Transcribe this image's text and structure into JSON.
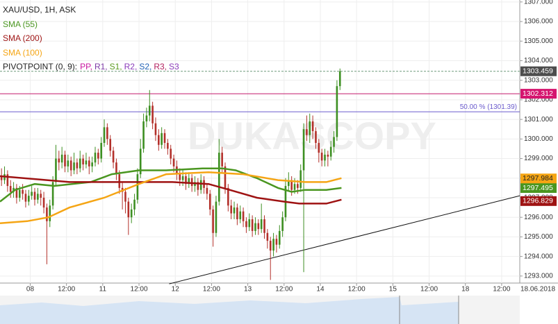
{
  "chart_data": {
    "type": "candlestick",
    "title": "XAU/USD, 1H, ASK",
    "watermark": "DUKASCOPY",
    "up_color": "#3d8f22",
    "down_color": "#b3302a",
    "xlim": [
      0,
      172
    ],
    "xticks": [
      {
        "value": 10,
        "label": "08"
      },
      {
        "value": 22,
        "label": "12:00"
      },
      {
        "value": 34,
        "label": "11"
      },
      {
        "value": 46,
        "label": "12:00"
      },
      {
        "value": 58,
        "label": "12"
      },
      {
        "value": 70,
        "label": "12:00"
      },
      {
        "value": 82,
        "label": "13"
      },
      {
        "value": 94,
        "label": "12:00"
      },
      {
        "value": 106,
        "label": "14"
      },
      {
        "value": 118,
        "label": "12:00"
      },
      {
        "value": 130,
        "label": "15"
      },
      {
        "value": 142,
        "label": "12:00"
      },
      {
        "value": 154,
        "label": "18"
      },
      {
        "value": 166,
        "label": "12:00"
      }
    ],
    "x_end_label": "18.06.2018",
    "ylim": [
      1292.64,
      1307.1
    ],
    "yticks": [
      {
        "value": 1293,
        "label": "1293.000"
      },
      {
        "value": 1294,
        "label": "1294.000"
      },
      {
        "value": 1295,
        "label": "1295.000"
      },
      {
        "value": 1296,
        "label": "1296.000"
      },
      {
        "value": 1297,
        "label": "1297.000"
      },
      {
        "value": 1298,
        "label": "1298.000"
      },
      {
        "value": 1299,
        "label": "1299.000"
      },
      {
        "value": 1300,
        "label": "1300.000"
      },
      {
        "value": 1301,
        "label": "1301.000"
      },
      {
        "value": 1302,
        "label": "1302.000"
      },
      {
        "value": 1303,
        "label": "1303.000"
      },
      {
        "value": 1304,
        "label": "1304.000"
      },
      {
        "value": 1305,
        "label": "1305.000"
      },
      {
        "value": 1306,
        "label": "1306.000"
      },
      {
        "value": 1307,
        "label": "1307.000"
      }
    ],
    "grid": true,
    "open": [
      1298.1,
      1297.9,
      1298.2,
      1297.6,
      1297.3,
      1297.5,
      1297.0,
      1297.4,
      1297.2,
      1296.8,
      1297.1,
      1297.3,
      1296.9,
      1297.2,
      1297.0,
      1296.5,
      1295.8,
      1296.6,
      1297.8,
      1299.0,
      1298.8,
      1299.2,
      1298.6,
      1298.9,
      1298.4,
      1298.8,
      1298.5,
      1299.0,
      1298.7,
      1298.9,
      1298.6,
      1298.8,
      1299.3,
      1299.0,
      1299.8,
      1300.6,
      1300.0,
      1299.4,
      1298.8,
      1298.2,
      1297.5,
      1297.3,
      1296.8,
      1296.0,
      1296.4,
      1296.9,
      1298.2,
      1299.5,
      1300.9,
      1301.2,
      1301.7,
      1300.8,
      1300.2,
      1299.7,
      1300.3,
      1299.8,
      1299.5,
      1299.0,
      1298.6,
      1298.2,
      1297.9,
      1298.1,
      1297.7,
      1298.0,
      1297.6,
      1297.8,
      1297.4,
      1297.9,
      1297.5,
      1297.2,
      1296.4,
      1295.2,
      1296.8,
      1299.3,
      1298.6,
      1297.5,
      1296.6,
      1296.2,
      1296.5,
      1295.9,
      1296.3,
      1295.8,
      1295.5,
      1295.9,
      1295.3,
      1295.7,
      1295.4,
      1295.9,
      1295.2,
      1294.8,
      1294.3,
      1294.9,
      1294.6,
      1295.3,
      1296.0,
      1297.6,
      1297.9,
      1297.4,
      1297.7,
      1297.5,
      1298.4,
      1300.5,
      1300.2,
      1300.9,
      1300.4,
      1299.8,
      1299.3,
      1298.9,
      1299.2,
      1299.1,
      1299.6,
      1300.1,
      1302.7
    ],
    "high": [
      1298.5,
      1298.6,
      1298.4,
      1297.9,
      1297.8,
      1297.7,
      1297.6,
      1297.7,
      1297.4,
      1297.4,
      1297.6,
      1297.5,
      1297.5,
      1297.4,
      1297.3,
      1296.7,
      1296.9,
      1298.1,
      1299.7,
      1299.4,
      1299.6,
      1299.4,
      1299.2,
      1299.1,
      1299.3,
      1299.0,
      1299.4,
      1299.2,
      1299.3,
      1299.1,
      1299.1,
      1299.6,
      1299.5,
      1300.1,
      1301.0,
      1300.8,
      1300.2,
      1299.6,
      1299.0,
      1298.4,
      1297.8,
      1297.5,
      1297.0,
      1296.7,
      1297.2,
      1298.5,
      1300.0,
      1301.3,
      1301.6,
      1302.5,
      1301.9,
      1301.1,
      1300.5,
      1300.6,
      1300.5,
      1300.0,
      1299.7,
      1299.2,
      1298.9,
      1298.5,
      1298.4,
      1298.3,
      1298.3,
      1298.2,
      1298.1,
      1298.0,
      1298.2,
      1298.1,
      1297.7,
      1297.4,
      1296.6,
      1297.1,
      1300.0,
      1299.6,
      1298.8,
      1297.7,
      1296.9,
      1296.8,
      1296.7,
      1296.6,
      1296.5,
      1296.0,
      1296.2,
      1296.1,
      1296.0,
      1295.9,
      1296.7,
      1296.1,
      1295.4,
      1295.0,
      1295.2,
      1295.1,
      1295.6,
      1296.3,
      1298.0,
      1298.3,
      1298.1,
      1298.0,
      1297.9,
      1298.7,
      1300.8,
      1301.2,
      1301.3,
      1301.2,
      1300.6,
      1300.0,
      1299.5,
      1299.5,
      1299.4,
      1299.9,
      1300.4,
      1303.0,
      1303.6
    ],
    "low": [
      1297.6,
      1297.7,
      1297.3,
      1297.0,
      1297.0,
      1296.7,
      1296.8,
      1296.9,
      1296.5,
      1296.6,
      1296.9,
      1296.6,
      1296.7,
      1296.6,
      1296.2,
      1293.6,
      1295.5,
      1296.4,
      1297.6,
      1298.4,
      1298.5,
      1298.3,
      1298.3,
      1298.1,
      1298.2,
      1298.2,
      1298.3,
      1298.4,
      1298.5,
      1298.2,
      1298.3,
      1298.6,
      1298.7,
      1298.8,
      1299.6,
      1299.7,
      1299.1,
      1298.5,
      1297.9,
      1297.2,
      1296.4,
      1296.2,
      1295.1,
      1295.7,
      1296.1,
      1296.7,
      1298.0,
      1299.3,
      1300.6,
      1300.9,
      1300.5,
      1299.9,
      1299.4,
      1299.5,
      1299.5,
      1299.2,
      1298.7,
      1298.3,
      1297.9,
      1297.6,
      1297.6,
      1297.4,
      1297.5,
      1297.3,
      1297.3,
      1297.1,
      1297.2,
      1297.2,
      1296.9,
      1296.1,
      1294.5,
      1295.0,
      1296.6,
      1298.3,
      1297.2,
      1296.3,
      1295.9,
      1295.9,
      1295.6,
      1295.7,
      1295.5,
      1295.2,
      1295.3,
      1295.0,
      1295.1,
      1295.1,
      1295.2,
      1294.9,
      1294.4,
      1292.8,
      1294.0,
      1294.2,
      1294.4,
      1295.0,
      1295.8,
      1297.3,
      1297.1,
      1297.2,
      1297.2,
      1297.3,
      1293.2,
      1299.9,
      1299.8,
      1300.0,
      1299.5,
      1298.8,
      1298.6,
      1298.6,
      1298.6,
      1298.9,
      1299.3,
      1299.9,
      1302.5
    ],
    "close": [
      1297.9,
      1298.2,
      1297.6,
      1297.3,
      1297.5,
      1297.0,
      1297.4,
      1297.2,
      1296.8,
      1297.1,
      1297.3,
      1296.9,
      1297.2,
      1297.0,
      1296.5,
      1295.8,
      1296.6,
      1297.8,
      1299.0,
      1298.8,
      1299.2,
      1298.6,
      1298.9,
      1298.4,
      1298.8,
      1298.5,
      1299.0,
      1298.7,
      1298.9,
      1298.6,
      1298.8,
      1299.3,
      1299.0,
      1299.8,
      1300.6,
      1300.0,
      1299.4,
      1298.8,
      1298.2,
      1297.5,
      1297.3,
      1296.8,
      1296.0,
      1296.4,
      1296.9,
      1298.2,
      1299.5,
      1300.9,
      1301.2,
      1301.7,
      1300.8,
      1300.2,
      1299.7,
      1300.3,
      1299.8,
      1299.5,
      1299.0,
      1298.6,
      1298.2,
      1297.9,
      1298.1,
      1297.7,
      1298.0,
      1297.6,
      1297.8,
      1297.4,
      1297.9,
      1297.5,
      1297.2,
      1296.4,
      1295.2,
      1296.8,
      1299.3,
      1298.6,
      1297.5,
      1296.6,
      1296.2,
      1296.5,
      1295.9,
      1296.3,
      1295.8,
      1295.5,
      1295.9,
      1295.3,
      1295.7,
      1295.4,
      1295.9,
      1295.2,
      1294.8,
      1294.3,
      1294.9,
      1294.6,
      1295.3,
      1296.0,
      1297.6,
      1297.9,
      1297.4,
      1297.7,
      1297.5,
      1298.4,
      1300.5,
      1300.2,
      1300.9,
      1300.4,
      1299.8,
      1299.3,
      1298.9,
      1299.2,
      1299.1,
      1299.6,
      1300.1,
      1302.7,
      1303.459
    ],
    "series": [
      {
        "name": "SMA (55)",
        "color": "#4a9620",
        "x": [
          0,
          5,
          11.5,
          18,
          30,
          37,
          46,
          55,
          67,
          73.5,
          78,
          85,
          92,
          96.5,
          101,
          108,
          113
        ],
        "values": [
          1296.8,
          1297.4,
          1297.7,
          1297.6,
          1297.8,
          1298.2,
          1298.4,
          1298.4,
          1298.5,
          1298.5,
          1298.4,
          1298.0,
          1297.5,
          1297.3,
          1297.4,
          1297.4,
          1297.5
        ],
        "current": 1297.495
      },
      {
        "name": "SMA (200)",
        "color": "#9e1212",
        "x": [
          0,
          23,
          46,
          57,
          69,
          76,
          85,
          94,
          99,
          108,
          113
        ],
        "values": [
          1298.1,
          1297.8,
          1297.8,
          1297.8,
          1297.7,
          1297.4,
          1297.0,
          1296.8,
          1296.7,
          1296.7,
          1296.9
        ],
        "current": 1296.829
      },
      {
        "name": "SMA (100)",
        "color": "#f5a514",
        "x": [
          0,
          9,
          16,
          23,
          34.5,
          46,
          55,
          69,
          80.5,
          92,
          101,
          108,
          113
        ],
        "values": [
          1295.7,
          1295.8,
          1296.0,
          1296.5,
          1297.0,
          1297.7,
          1298.2,
          1298.3,
          1298.2,
          1297.9,
          1297.8,
          1297.8,
          1298.0
        ],
        "current": 1297.984
      }
    ],
    "pivot_title": "PIVOTPOINT (0, 9):",
    "pivot_items": [
      {
        "label": "PP,",
        "color": "#c8129e"
      },
      {
        "label": "R1,",
        "color": "#7d3aa6"
      },
      {
        "label": "S1,",
        "color": "#5a9a1e"
      },
      {
        "label": "R2,",
        "color": "#8a3ab9"
      },
      {
        "label": "S2,",
        "color": "#1f60b5"
      },
      {
        "label": "R3,",
        "color": "#b3205f"
      },
      {
        "label": "S3",
        "color": "#8a3ab9"
      }
    ],
    "hlines": [
      {
        "value": 1303.459,
        "color": "#6f9a7a",
        "dashed": true,
        "box": "#4d4d4d"
      },
      {
        "value": 1302.312,
        "color": "#c2186b",
        "dashed": false,
        "box": "#d5156f"
      },
      {
        "value": 1301.39,
        "color": "#6a5acd",
        "dashed": false,
        "label": "50.00 % (1301.39)"
      }
    ],
    "trendline": {
      "x": [
        56,
        172
      ],
      "values": [
        1292.6,
        1297.1
      ],
      "color": "#111"
    }
  }
}
